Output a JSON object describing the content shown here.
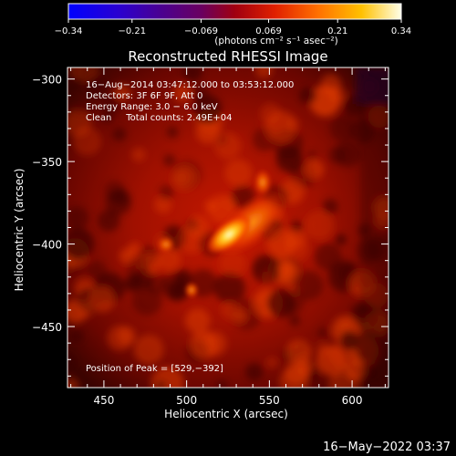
{
  "colorbar": {
    "tick_labels": [
      "−0.34",
      "−0.21",
      "−0.069",
      "0.069",
      "0.21",
      "0.34"
    ],
    "unit_label": "(photons cm⁻² s⁻¹ asec⁻²)",
    "range": [
      -0.34,
      0.34
    ]
  },
  "chart_data": {
    "type": "heatmap",
    "title": "Reconstructed RHESSI Image",
    "xlabel": "Heliocentric X (arcsec)",
    "ylabel": "Heliocentric Y (arcsec)",
    "xlim": [
      428,
      622
    ],
    "ylim": [
      -487,
      -293
    ],
    "x_ticks": [
      450,
      500,
      550,
      600
    ],
    "y_ticks": [
      -300,
      -350,
      -400,
      -450
    ],
    "x_tick_labels": [
      "450",
      "500",
      "550",
      "600"
    ],
    "y_tick_labels": [
      "−300",
      "−350",
      "−400",
      "−450"
    ],
    "info_lines": [
      "16−Aug−2014 03:47:12.000 to 03:53:12.000",
      "Detectors: 3F 6F 9F, Att 0",
      "Energy Range: 3.0 − 6.0 keV",
      "Clean     Total counts: 2.49E+04"
    ],
    "peak_label": "Position of Peak = [529,−392]",
    "peak": [
      529,
      -392
    ]
  },
  "footer": {
    "timestamp": "16−May−2022 03:37"
  }
}
